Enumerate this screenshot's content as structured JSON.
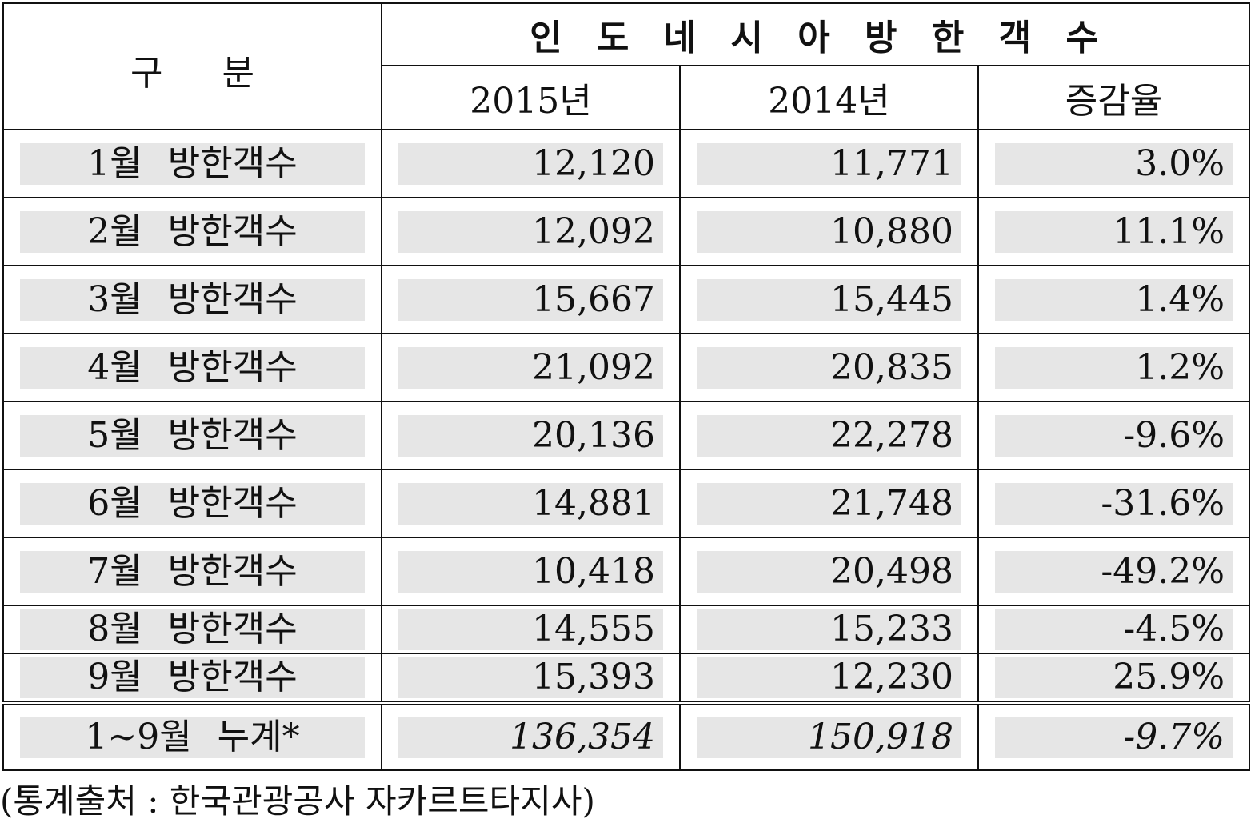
{
  "table": {
    "header": {
      "category": "구 분",
      "group": "인 도 네 시 아 방 한 객 수",
      "columns": [
        "2015년",
        "2014년",
        "증감율"
      ]
    },
    "rows": [
      [
        "1월 방한객수",
        "12,120",
        "11,771",
        "3.0%"
      ],
      [
        "2월 방한객수",
        "12,092",
        "10,880",
        "11.1%"
      ],
      [
        "3월 방한객수",
        "15,667",
        "15,445",
        "1.4%"
      ],
      [
        "4월 방한객수",
        "21,092",
        "20,835",
        "1.2%"
      ],
      [
        "5월 방한객수",
        "20,136",
        "22,278",
        "-9.6%"
      ],
      [
        "6월 방한객수",
        "14,881",
        "21,748",
        "-31.6%"
      ],
      [
        "7월 방한객수",
        "10,418",
        "20,498",
        "-49.2%"
      ],
      [
        "8월 방한객수",
        "14,555",
        "15,233",
        "-4.5%"
      ],
      [
        "9월 방한객수",
        "15,393",
        "12,230",
        "25.9%"
      ]
    ],
    "total": [
      "1~9월 누계*",
      "136,354",
      "150,918",
      "-9.7%"
    ]
  },
  "note": "(통계출처 : 한국관광공사 자카르트타지사)"
}
